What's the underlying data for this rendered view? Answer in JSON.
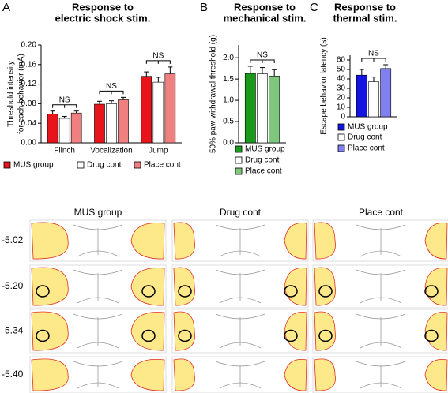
{
  "chart_data": [
    {
      "type": "bar",
      "panel": "A",
      "title": [
        "Response to",
        "electric shock stim."
      ],
      "ylabel": [
        "Threshold intensity",
        "for each behavior (mA)"
      ],
      "categories": [
        "Flinch",
        "Vocalization",
        "Jump"
      ],
      "series": [
        {
          "name": "MUS group",
          "color": "#e8141c",
          "values": [
            0.059,
            0.079,
            0.136
          ],
          "errors": [
            0.006,
            0.006,
            0.009
          ]
        },
        {
          "name": "Drug cont",
          "color": "#ffffff",
          "values": [
            0.05,
            0.08,
            0.124
          ],
          "errors": [
            0.004,
            0.006,
            0.01
          ]
        },
        {
          "name": "Place cont",
          "color": "#f08080",
          "values": [
            0.061,
            0.088,
            0.141
          ],
          "errors": [
            0.004,
            0.005,
            0.014
          ]
        }
      ],
      "ylim": [
        0,
        0.2
      ],
      "yticks": [
        {
          "value": 0,
          "label": "0.00"
        },
        {
          "value": 0.04,
          "label": "0.04"
        },
        {
          "value": 0.08,
          "label": "0.08"
        },
        {
          "value": 0.12,
          "label": "0.12"
        },
        {
          "value": 0.16,
          "label": "0.16"
        },
        {
          "value": 0.2,
          "label": "0.20"
        }
      ],
      "annotations": [
        "NS",
        "NS",
        "NS"
      ]
    },
    {
      "type": "bar",
      "panel": "B",
      "title": [
        "Response to",
        "mechanical stim."
      ],
      "ylabel": [
        "50% paw withdrawal threshold (g)"
      ],
      "categories": [
        null
      ],
      "series": [
        {
          "name": "MUS group",
          "color": "#1a9a1a",
          "values": [
            1.63
          ],
          "errors": [
            0.17
          ]
        },
        {
          "name": "Drug cont",
          "color": "#ffffff",
          "values": [
            1.62
          ],
          "errors": [
            0.15
          ]
        },
        {
          "name": "Place cont",
          "color": "#7fc77f",
          "values": [
            1.57
          ],
          "errors": [
            0.15
          ]
        }
      ],
      "ylim": [
        0,
        2.3
      ],
      "yticks": [
        {
          "value": 0,
          "label": "0.0"
        },
        0.5,
        {
          "value": 1,
          "label": "1.0"
        },
        1.5,
        {
          "value": 2,
          "label": "2.0"
        }
      ],
      "annotations": [
        "NS"
      ]
    },
    {
      "type": "bar",
      "panel": "C",
      "title": [
        "Response to",
        "thermal stim."
      ],
      "ylabel": [
        "Escape behavior latency (s)"
      ],
      "categories": [
        null
      ],
      "series": [
        {
          "name": "MUS group",
          "color": "#1414e0",
          "values": [
            44
          ],
          "errors": [
            6
          ]
        },
        {
          "name": "Drug cont",
          "color": "#ffffff",
          "values": [
            37
          ],
          "errors": [
            5
          ]
        },
        {
          "name": "Place cont",
          "color": "#8080f0",
          "values": [
            51
          ],
          "errors": [
            4
          ]
        }
      ],
      "ylim": [
        0,
        65
      ],
      "yticks": [
        0,
        10,
        20,
        30,
        40,
        50,
        60
      ],
      "annotations": [
        "NS"
      ]
    }
  ],
  "atlas": {
    "columns": [
      "MUS group",
      "Drug cont",
      "Place cont"
    ],
    "rows": [
      "-5.02",
      "-5.20",
      "-5.34",
      "-5.40"
    ]
  }
}
